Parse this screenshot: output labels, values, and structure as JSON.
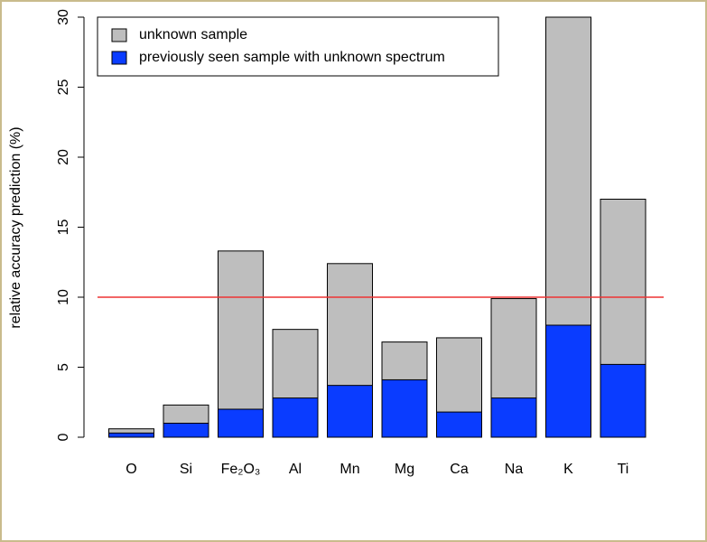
{
  "chart_data": {
    "type": "bar",
    "ylabel": "relative accuracy prediction (%)",
    "categories": [
      "O",
      "Si",
      "Fe₂O₃",
      "Al",
      "Mn",
      "Mg",
      "Ca",
      "Na",
      "K",
      "Ti"
    ],
    "series": [
      {
        "name": "unknown sample",
        "color": "#bebebe",
        "values": [
          0.6,
          2.3,
          13.3,
          7.7,
          12.4,
          6.8,
          7.1,
          9.9,
          30.0,
          17.0
        ]
      },
      {
        "name": "previously seen sample with unknown spectrum",
        "color": "#0a3cff",
        "values": [
          0.3,
          1.0,
          2.0,
          2.8,
          3.7,
          4.1,
          1.8,
          2.8,
          8.0,
          5.2
        ]
      }
    ],
    "overlay": true,
    "hline": {
      "value": 10,
      "color": "#ee3333"
    },
    "ylim": [
      0,
      30
    ],
    "yticks": [
      0,
      5,
      10,
      15,
      20,
      25,
      30
    ],
    "legend": "top-left"
  }
}
